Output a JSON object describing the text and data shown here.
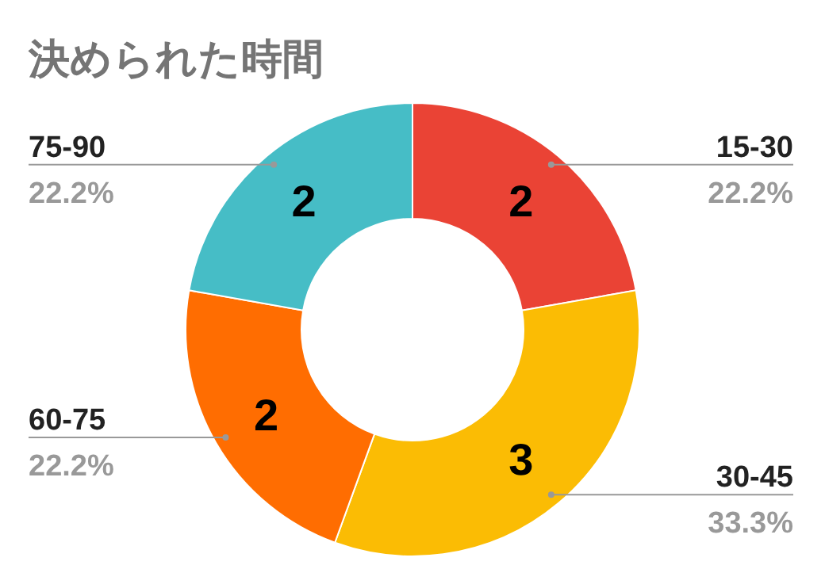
{
  "chart_data": {
    "type": "donut",
    "title": "決められた時間",
    "categories": [
      "15-30",
      "30-45",
      "60-75",
      "75-90"
    ],
    "values": [
      2,
      3,
      2,
      2
    ],
    "colors": [
      "#ea4335",
      "#fbbc04",
      "#ff6d01",
      "#46bdc6"
    ],
    "data_labels": true,
    "annotations": [
      "22.2%",
      "33.3%",
      "22.2%",
      "22.2%"
    ]
  }
}
